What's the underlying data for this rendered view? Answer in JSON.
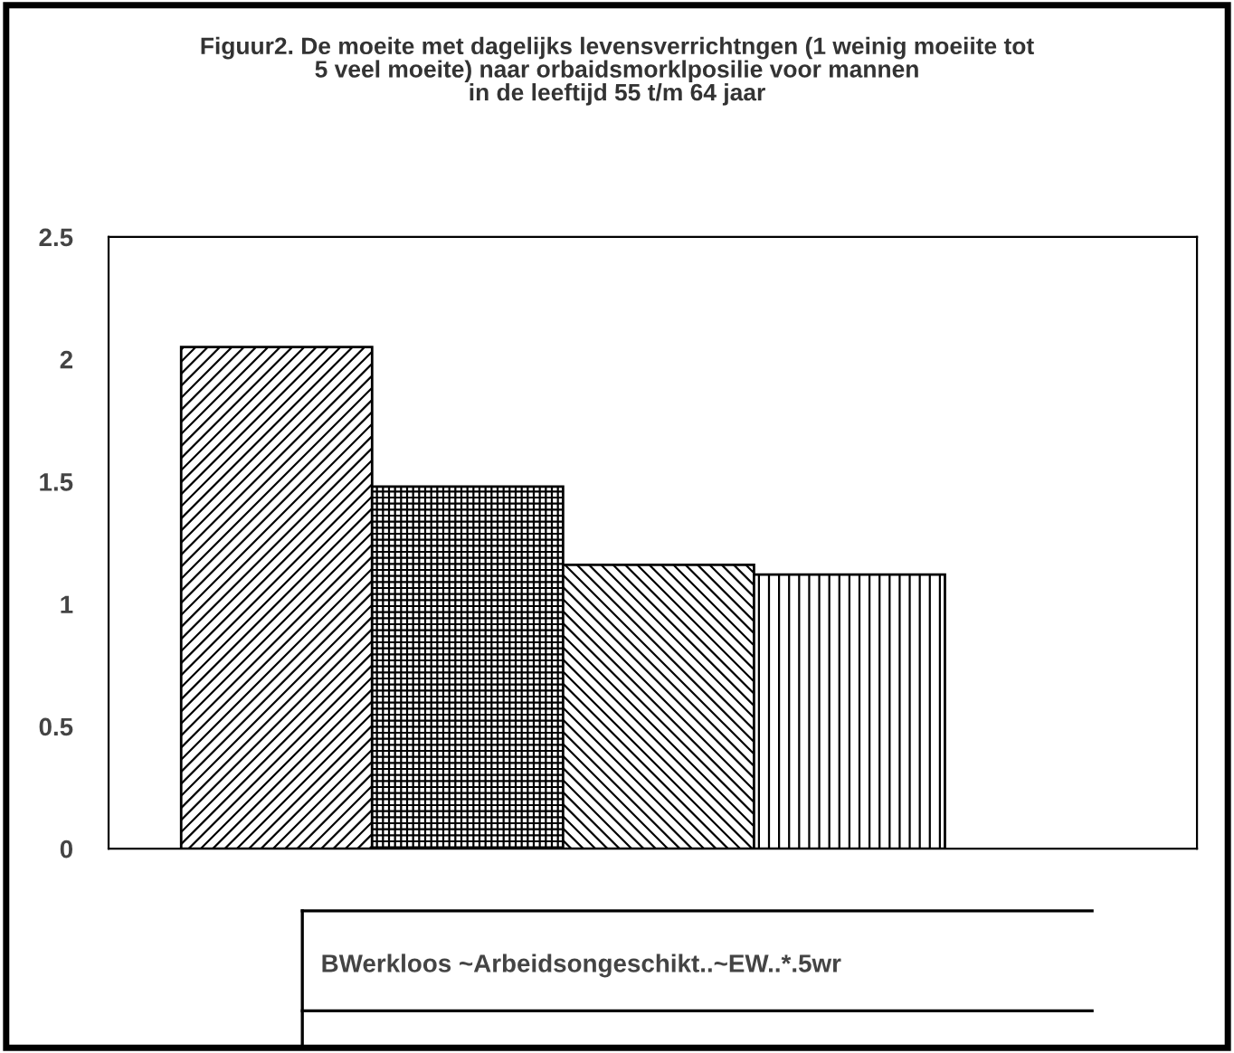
{
  "chart_data": {
    "type": "bar",
    "title": "Figuur2. De moeite met dagelijks levensverrichtngen (1 weinig moeiite tot\n5 veel moeite) naar orbaidsmorklposilie voor mannen\nin de leeftijd 55 t/m 64 jaar",
    "categories": [
      null,
      null,
      null,
      null
    ],
    "values": [
      2.05,
      1.48,
      1.16,
      1.12
    ],
    "colors": [
      "#000000",
      "#000000",
      "#000000",
      "#000000"
    ],
    "ylim": [
      0,
      2.5
    ],
    "yticks": [
      0,
      0.5,
      1,
      1.5,
      2,
      2.5
    ],
    "grid": false,
    "annotations": [
      "BWerkloos ~Arbeidsongeschikt..~EW..*.5wr"
    ]
  }
}
